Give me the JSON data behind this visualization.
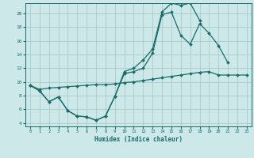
{
  "xlabel": "Humidex (Indice chaleur)",
  "bg_color": "#cce8e8",
  "grid_color": "#aacaca",
  "line_color": "#1a6b6b",
  "xlim": [
    -0.5,
    23.5
  ],
  "ylim": [
    3.5,
    21.5
  ],
  "xticks": [
    0,
    1,
    2,
    3,
    4,
    5,
    6,
    7,
    8,
    9,
    10,
    11,
    12,
    13,
    14,
    15,
    16,
    17,
    18,
    19,
    20,
    21,
    22,
    23
  ],
  "yticks": [
    4,
    6,
    8,
    10,
    12,
    14,
    16,
    18,
    20
  ],
  "lines": [
    {
      "x": [
        0,
        1,
        2,
        3,
        4,
        5,
        6,
        7,
        8,
        9,
        10,
        11,
        12,
        13,
        14,
        15,
        16,
        17,
        18,
        19,
        20,
        21
      ],
      "y": [
        9.5,
        8.7,
        7.1,
        7.8,
        5.8,
        5.0,
        4.9,
        4.4,
        5.0,
        7.9,
        11.2,
        11.5,
        12.0,
        14.2,
        19.8,
        20.2,
        16.8,
        15.5,
        18.5,
        17.1,
        15.3,
        12.8
      ]
    },
    {
      "x": [
        0,
        1,
        2,
        3,
        4,
        5,
        6,
        7,
        8,
        9,
        10,
        11,
        12,
        13,
        14,
        15,
        16,
        17,
        18
      ],
      "y": [
        9.5,
        8.7,
        7.1,
        7.8,
        5.8,
        5.0,
        4.9,
        4.4,
        5.0,
        7.9,
        11.5,
        12.0,
        13.2,
        14.8,
        20.2,
        21.5,
        21.2,
        21.5,
        19.0
      ]
    },
    {
      "x": [
        0,
        1,
        2,
        3,
        4,
        5,
        6,
        7,
        8,
        9,
        10,
        11,
        12,
        13,
        14,
        15,
        16,
        17,
        18,
        19,
        20,
        21,
        22,
        23
      ],
      "y": [
        9.5,
        8.9,
        9.1,
        9.2,
        9.3,
        9.4,
        9.5,
        9.6,
        9.6,
        9.7,
        9.9,
        10.0,
        10.2,
        10.4,
        10.6,
        10.8,
        11.0,
        11.2,
        11.4,
        11.5,
        11.0,
        11.0,
        11.0,
        11.0
      ]
    }
  ]
}
